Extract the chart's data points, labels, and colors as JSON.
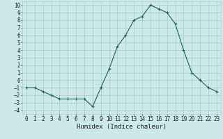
{
  "x": [
    0,
    1,
    2,
    3,
    4,
    5,
    6,
    7,
    8,
    9,
    10,
    11,
    12,
    13,
    14,
    15,
    16,
    17,
    18,
    19,
    20,
    21,
    22,
    23
  ],
  "y": [
    -1,
    -1,
    -1.5,
    -2,
    -2.5,
    -2.5,
    -2.5,
    -2.5,
    -3.5,
    -1,
    1.5,
    4.5,
    6,
    8,
    8.5,
    10,
    9.5,
    9,
    7.5,
    4,
    1,
    0,
    -1,
    -1.5
  ],
  "bg_color": "#cce8e8",
  "grid_color": "#aacfcf",
  "line_color": "#1a5f5f",
  "marker_color": "#1a5f5f",
  "xlabel": "Humidex (Indice chaleur)",
  "xlim": [
    -0.5,
    23.5
  ],
  "ylim": [
    -4.5,
    10.5
  ],
  "yticks": [
    -4,
    -3,
    -2,
    -1,
    0,
    1,
    2,
    3,
    4,
    5,
    6,
    7,
    8,
    9,
    10
  ],
  "xticks": [
    0,
    1,
    2,
    3,
    4,
    5,
    6,
    7,
    8,
    9,
    10,
    11,
    12,
    13,
    14,
    15,
    16,
    17,
    18,
    19,
    20,
    21,
    22,
    23
  ],
  "tick_fontsize": 5.5,
  "label_fontsize": 6.5
}
